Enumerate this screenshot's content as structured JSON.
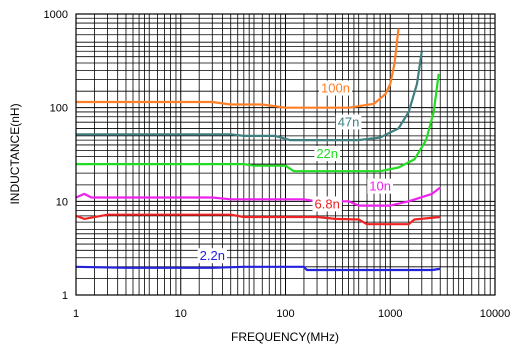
{
  "chart_data": {
    "type": "line",
    "xlabel": "FREQUENCY(MHz)",
    "ylabel": "INDUCTANCE(nH)",
    "xscale": "log",
    "yscale": "log",
    "xlim": [
      1,
      10000
    ],
    "ylim": [
      1,
      1000
    ],
    "grid": true,
    "x_ticks": [
      "1",
      "10",
      "100",
      "1000",
      "10000"
    ],
    "y_ticks": [
      "1",
      "10",
      "100",
      "1000"
    ],
    "series": [
      {
        "name": "100n",
        "color": "#ff7f27",
        "points": [
          [
            1,
            115
          ],
          [
            20,
            115
          ],
          [
            30,
            108
          ],
          [
            60,
            108
          ],
          [
            100,
            100
          ],
          [
            400,
            100
          ],
          [
            700,
            110
          ],
          [
            900,
            140
          ],
          [
            1000,
            180
          ],
          [
            1100,
            300
          ],
          [
            1200,
            700
          ]
        ]
      },
      {
        "name": "47n",
        "color": "#3f7f7f",
        "points": [
          [
            1,
            52
          ],
          [
            30,
            52
          ],
          [
            40,
            50
          ],
          [
            80,
            50
          ],
          [
            110,
            45
          ],
          [
            500,
            45
          ],
          [
            800,
            48
          ],
          [
            1200,
            60
          ],
          [
            1500,
            90
          ],
          [
            1800,
            180
          ],
          [
            2000,
            400
          ]
        ]
      },
      {
        "name": "22n",
        "color": "#22dd22",
        "points": [
          [
            1,
            25
          ],
          [
            40,
            25
          ],
          [
            50,
            24
          ],
          [
            100,
            24
          ],
          [
            120,
            21
          ],
          [
            800,
            21
          ],
          [
            1200,
            23
          ],
          [
            1700,
            28
          ],
          [
            2200,
            45
          ],
          [
            2600,
            90
          ],
          [
            2900,
            230
          ]
        ]
      },
      {
        "name": "10n",
        "color": "#ee22ee",
        "points": [
          [
            1,
            11
          ],
          [
            1.2,
            12
          ],
          [
            1.4,
            11
          ],
          [
            20,
            11
          ],
          [
            30,
            10.5
          ],
          [
            150,
            10.5
          ],
          [
            200,
            10
          ],
          [
            400,
            10
          ],
          [
            500,
            9
          ],
          [
            1000,
            9
          ],
          [
            1500,
            10
          ],
          [
            2500,
            12
          ],
          [
            3000,
            14
          ]
        ]
      },
      {
        "name": "6.8n",
        "color": "#ee2222",
        "points": [
          [
            1,
            7
          ],
          [
            1.2,
            6.5
          ],
          [
            2,
            7.2
          ],
          [
            30,
            7.2
          ],
          [
            40,
            6.8
          ],
          [
            200,
            6.8
          ],
          [
            300,
            6.5
          ],
          [
            500,
            6.4
          ],
          [
            600,
            5.7
          ],
          [
            1500,
            5.7
          ],
          [
            1700,
            6.4
          ],
          [
            3000,
            6.8
          ]
        ]
      },
      {
        "name": "2.2n",
        "color": "#2222dd",
        "points": [
          [
            1,
            2
          ],
          [
            3,
            1.95
          ],
          [
            20,
            1.95
          ],
          [
            40,
            2
          ],
          [
            150,
            2
          ],
          [
            160,
            1.85
          ],
          [
            2500,
            1.85
          ],
          [
            3000,
            1.9
          ]
        ]
      }
    ]
  }
}
